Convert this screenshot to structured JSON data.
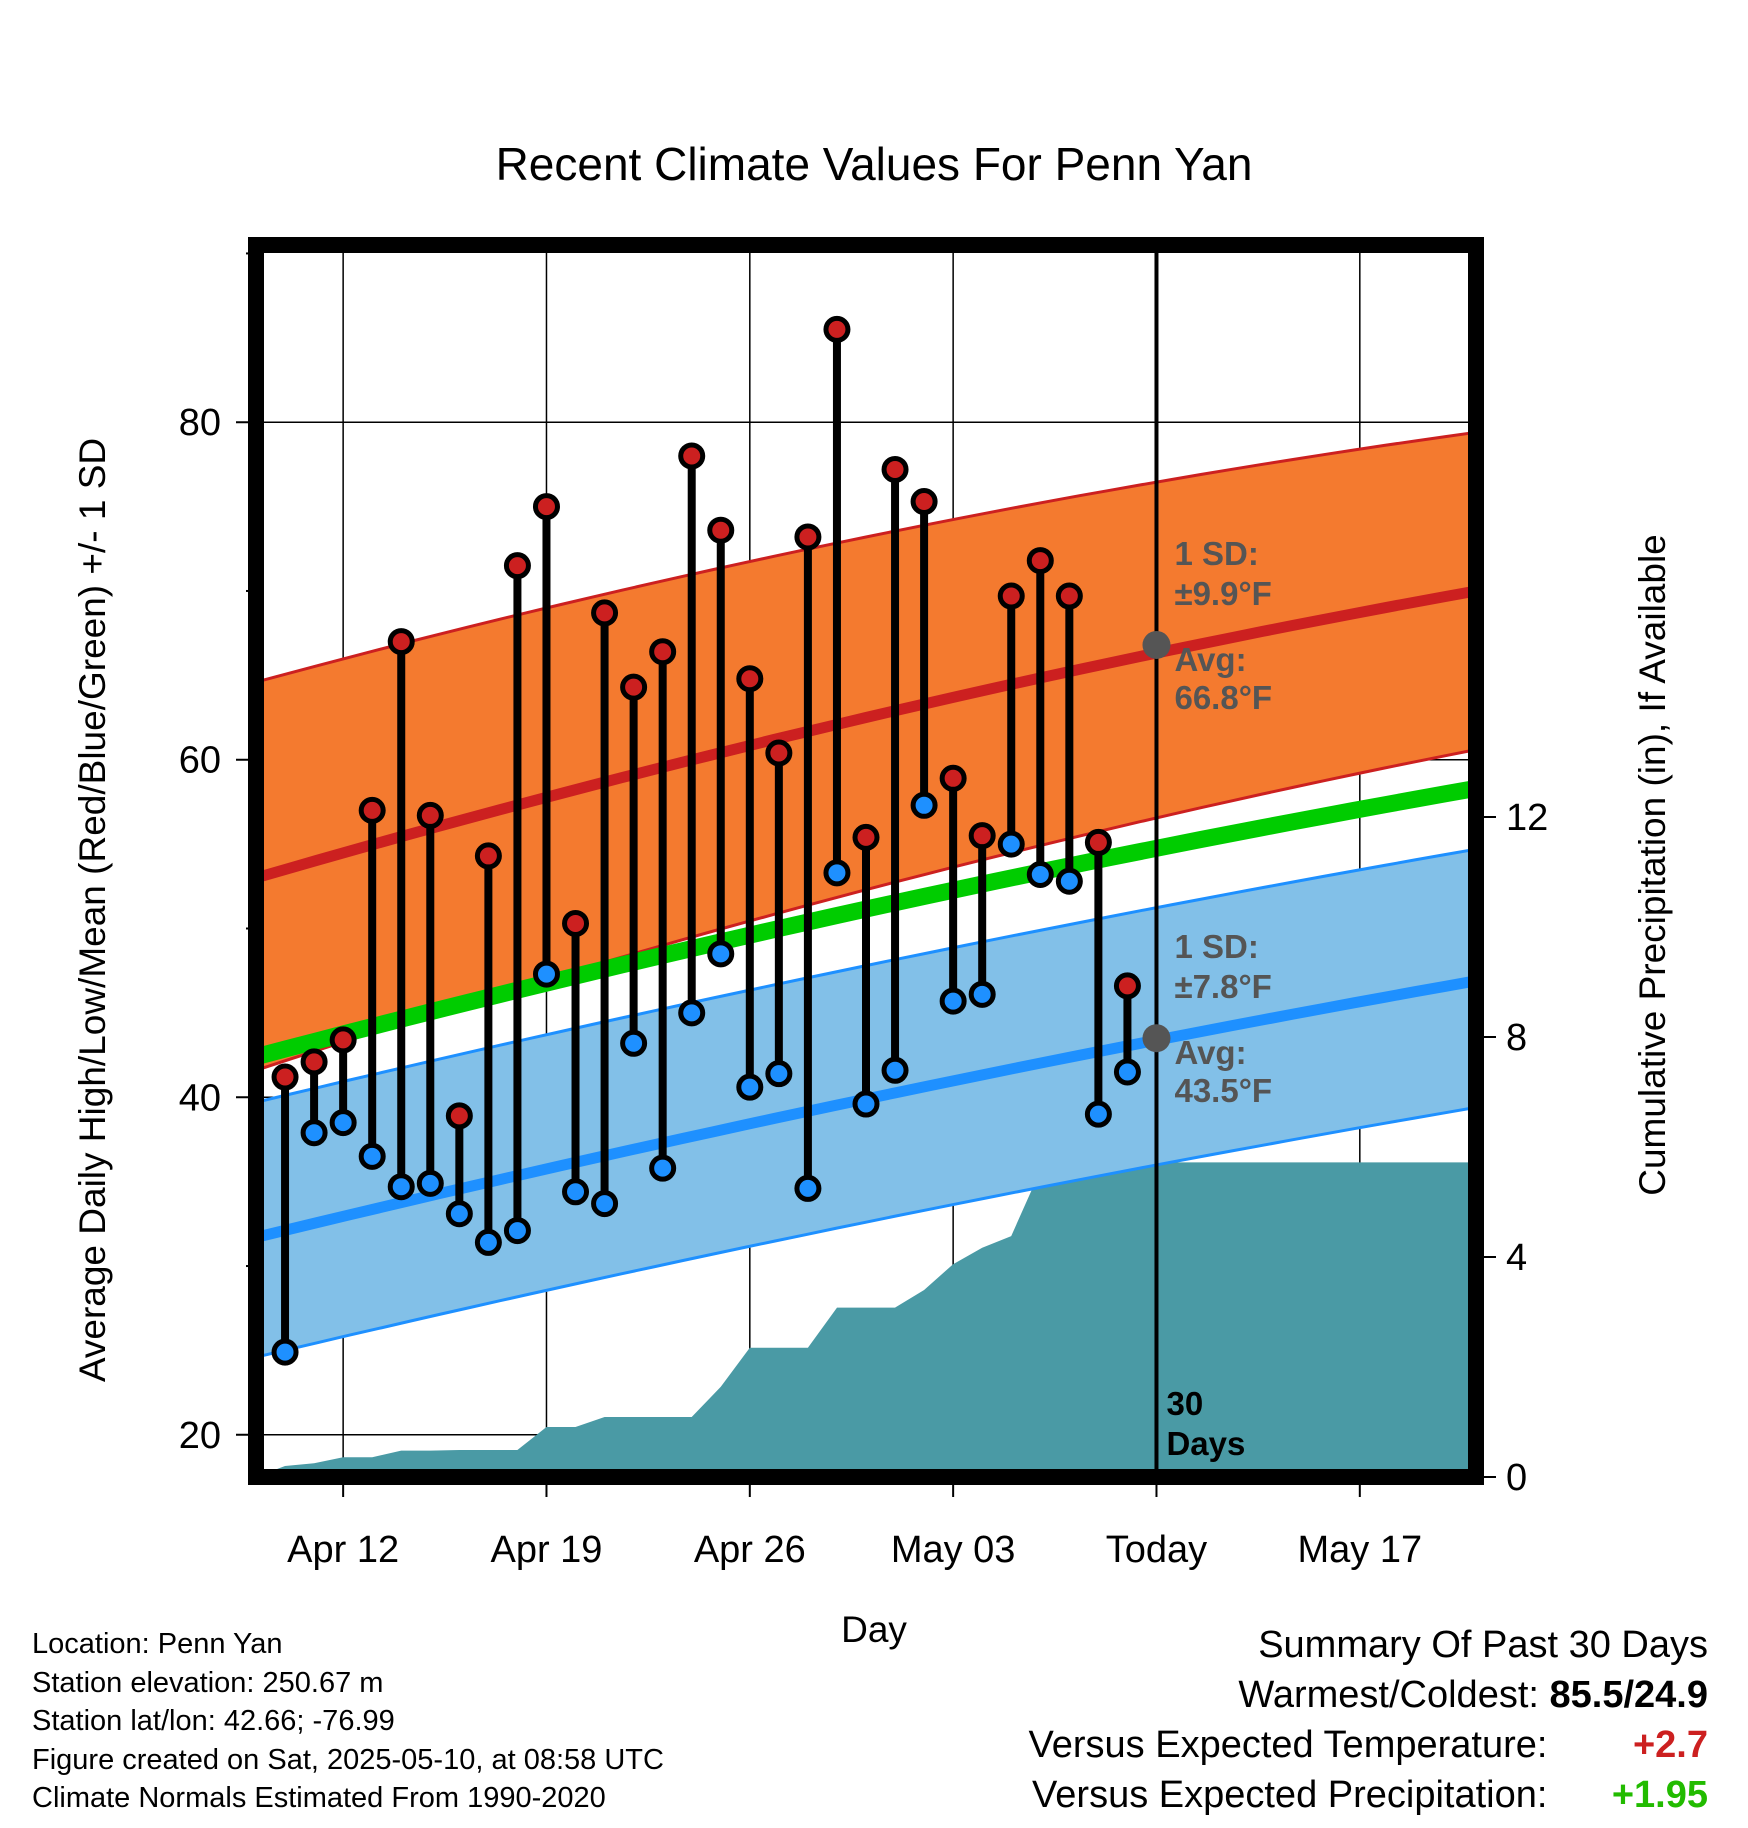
{
  "chart_data": {
    "type": "line",
    "title": "Recent Climate Values For Penn Yan",
    "xlabel": "Day",
    "ylabel": "Average Daily High/Low/Mean (Red/Blue/Green) +/- 1 SD",
    "y2label": "Cumulative Precipitation (in), If Available",
    "xlim": [
      "2025-04-09",
      "2025-05-21"
    ],
    "x_ticks": [
      {
        "date": "2025-04-12",
        "label": "Apr 12"
      },
      {
        "date": "2025-04-19",
        "label": "Apr 19"
      },
      {
        "date": "2025-04-26",
        "label": "Apr 26"
      },
      {
        "date": "2025-05-03",
        "label": "May 03"
      },
      {
        "date": "2025-05-10",
        "label": "Today"
      },
      {
        "date": "2025-05-17",
        "label": "May 17"
      }
    ],
    "ylim": [
      17.5,
      90.5
    ],
    "y_ticks": [
      20,
      40,
      60,
      80
    ],
    "y2lim": [
      0,
      22.4
    ],
    "y2_ticks": [
      0,
      4,
      8,
      12
    ],
    "grid": true,
    "today": "2025-05-10",
    "today_label": "30\nDays",
    "daily": {
      "dates": [
        "2025-04-10",
        "2025-04-11",
        "2025-04-12",
        "2025-04-13",
        "2025-04-14",
        "2025-04-15",
        "2025-04-16",
        "2025-04-17",
        "2025-04-18",
        "2025-04-19",
        "2025-04-20",
        "2025-04-21",
        "2025-04-22",
        "2025-04-23",
        "2025-04-24",
        "2025-04-25",
        "2025-04-26",
        "2025-04-27",
        "2025-04-28",
        "2025-04-29",
        "2025-04-30",
        "2025-05-01",
        "2025-05-02",
        "2025-05-03",
        "2025-05-04",
        "2025-05-05",
        "2025-05-06",
        "2025-05-07",
        "2025-05-08",
        "2025-05-09"
      ],
      "high": [
        41.2,
        42.1,
        43.4,
        57.0,
        67.0,
        56.7,
        38.9,
        54.3,
        71.5,
        75.0,
        50.3,
        68.7,
        64.3,
        66.4,
        78.0,
        73.6,
        64.8,
        60.4,
        73.2,
        85.5,
        55.4,
        77.2,
        75.3,
        58.9,
        55.5,
        69.7,
        71.8,
        69.7,
        55.1,
        46.6
      ],
      "low": [
        24.9,
        37.9,
        38.5,
        36.5,
        34.7,
        34.9,
        33.1,
        31.4,
        32.1,
        47.3,
        34.4,
        33.7,
        43.2,
        35.8,
        45.0,
        48.5,
        40.6,
        41.4,
        34.6,
        53.3,
        39.6,
        41.6,
        57.3,
        45.7,
        46.1,
        55.0,
        53.2,
        52.8,
        39.0,
        41.5
      ]
    },
    "normals": {
      "dates": [
        "2025-04-09",
        "2025-05-21"
      ],
      "high_avg": [
        53.0,
        70.0
      ],
      "high_sd_upper": [
        64.6,
        79.4
      ],
      "high_sd_lower": [
        41.6,
        60.6
      ],
      "mean_avg": [
        42.4,
        58.3
      ],
      "low_avg": [
        31.7,
        46.9
      ],
      "low_sd_upper": [
        39.7,
        54.7
      ],
      "low_sd_lower": [
        24.6,
        39.4
      ]
    },
    "precip_cumulative": {
      "dates": [
        "2025-04-09",
        "2025-04-10",
        "2025-04-11",
        "2025-04-12",
        "2025-04-13",
        "2025-04-14",
        "2025-04-15",
        "2025-04-16",
        "2025-04-17",
        "2025-04-18",
        "2025-04-19",
        "2025-04-20",
        "2025-04-21",
        "2025-04-22",
        "2025-04-23",
        "2025-04-24",
        "2025-04-25",
        "2025-04-26",
        "2025-04-27",
        "2025-04-28",
        "2025-04-29",
        "2025-04-30",
        "2025-05-01",
        "2025-05-02",
        "2025-05-03",
        "2025-05-04",
        "2025-05-05",
        "2025-05-06",
        "2025-05-07",
        "2025-05-08",
        "2025-05-09",
        "2025-05-10",
        "2025-05-21"
      ],
      "values": [
        0.0,
        0.2,
        0.25,
        0.36,
        0.36,
        0.48,
        0.48,
        0.49,
        0.49,
        0.49,
        0.91,
        0.91,
        1.09,
        1.09,
        1.09,
        1.09,
        1.64,
        2.35,
        2.35,
        2.35,
        3.08,
        3.08,
        3.08,
        3.4,
        3.87,
        4.17,
        4.38,
        5.57,
        5.69,
        5.69,
        5.69,
        5.72,
        5.72
      ]
    },
    "today_high_marker": 66.8,
    "today_low_marker": 43.5,
    "annotations": {
      "high_sd": "±9.9°F",
      "high_avg": "66.8°F",
      "low_sd": "±7.8°F",
      "low_avg": "43.5°F",
      "sd_label": "1 SD:",
      "avg_label": "Avg:"
    },
    "colors": {
      "high": "#cc2020",
      "low": "#1e90ff",
      "high_band": "#f47a2f",
      "low_band": "#82c0e8",
      "mean_line": "#00cc00",
      "precip": "#4a9aa5"
    }
  },
  "info": {
    "location": "Location: Penn Yan",
    "elevation": "Station elevation: 250.67 m",
    "latlon": "Station lat/lon: 42.66; -76.99",
    "created": "Figure created on Sat, 2025-05-10, at 08:58 UTC",
    "normals": "Climate Normals Estimated From 1990-2020"
  },
  "summary": {
    "heading": "Summary Of Past 30 Days",
    "warmest_coldest_label": "Warmest/Coldest:",
    "warmest_coldest_value": "85.5/24.9",
    "temp_label": "Versus Expected Temperature:",
    "temp_value": "+2.7",
    "temp_color": "#cc2020",
    "precip_label": "Versus Expected Precipitation:",
    "precip_value": "+1.95",
    "precip_color": "#22bb00"
  }
}
